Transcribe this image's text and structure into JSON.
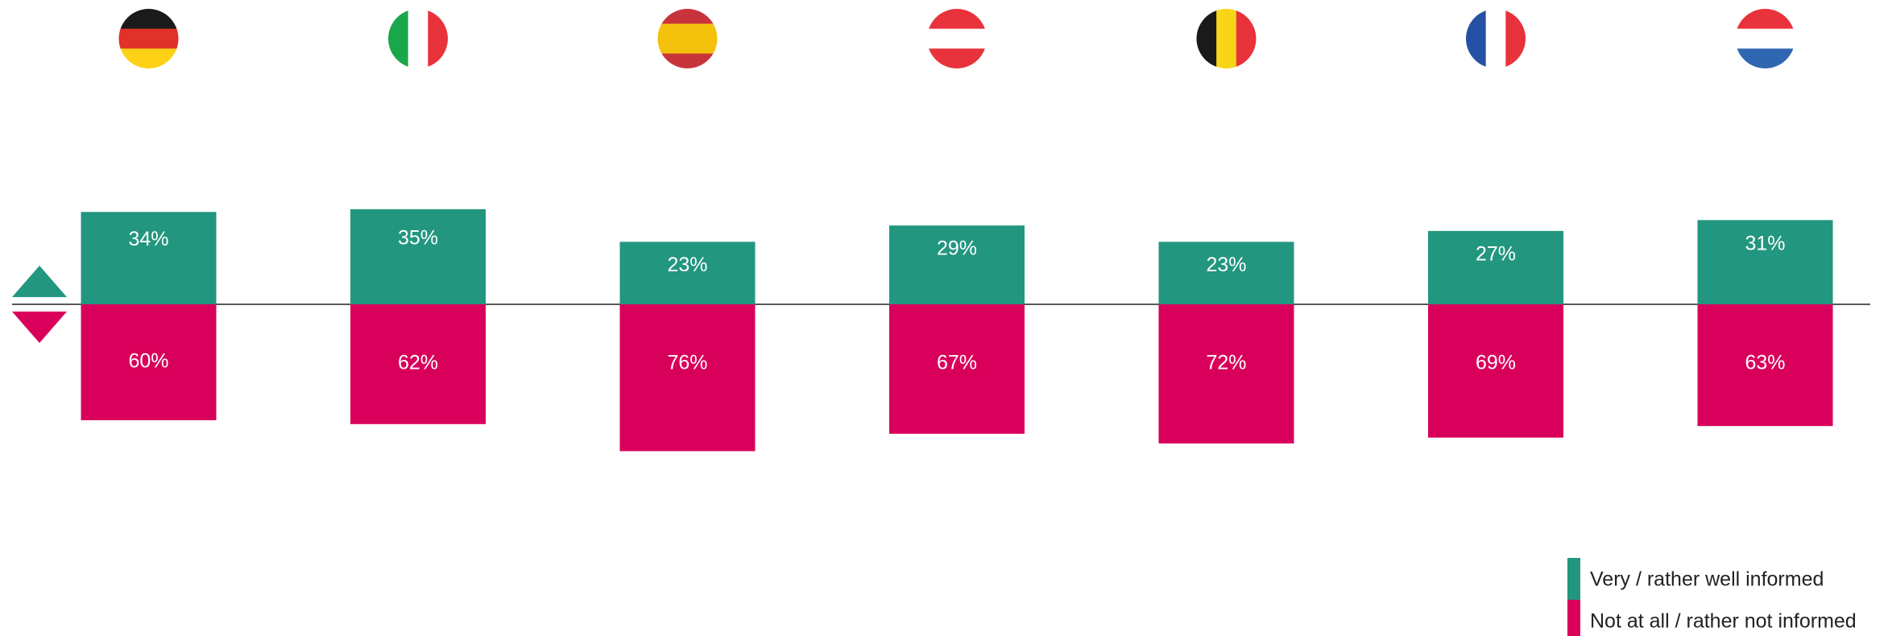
{
  "chart_data": {
    "type": "diverging-bar",
    "categories": [
      null,
      null,
      null,
      null,
      null,
      null,
      null
    ],
    "series": [
      {
        "name": "Very / rather well informed",
        "color": "#23967f",
        "direction": "up",
        "values": [
          34,
          35,
          23,
          29,
          23,
          27,
          31
        ],
        "value_labels": [
          "34%",
          "35%",
          "23%",
          "29%",
          "23%",
          "27%",
          "31%"
        ]
      },
      {
        "name": "Not at all / rather not informed",
        "color": "#d9005b",
        "direction": "down",
        "values": [
          60,
          62,
          76,
          67,
          72,
          69,
          63
        ],
        "value_labels": [
          "60%",
          "62%",
          "76%",
          "67%",
          "72%",
          "69%",
          "63%"
        ]
      }
    ],
    "legend": "bottom-right"
  }
}
